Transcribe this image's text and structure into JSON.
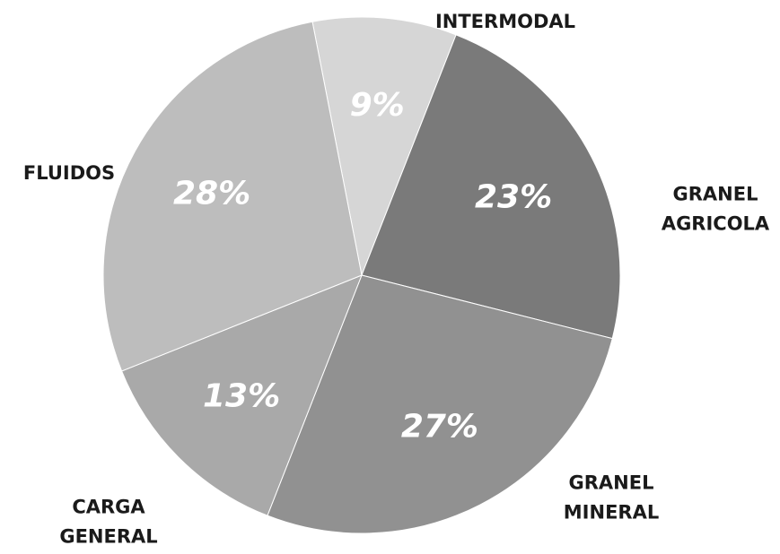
{
  "chart_data": {
    "type": "pie",
    "title": "",
    "slices": [
      {
        "label": [
          "INTERMODAL"
        ],
        "value": 9,
        "value_label": "9%",
        "color": "#d6d6d6"
      },
      {
        "label": [
          "GRANEL",
          "AGRICOLA"
        ],
        "value": 23,
        "value_label": "23%",
        "color": "#7a7a7a"
      },
      {
        "label": [
          "GRANEL",
          "MINERAL"
        ],
        "value": 27,
        "value_label": "27%",
        "color": "#919191"
      },
      {
        "label": [
          "CARGA",
          "GENERAL"
        ],
        "value": 13,
        "value_label": "13%",
        "color": "#a9a9a9"
      },
      {
        "label": [
          "FLUIDOS"
        ],
        "value": 28,
        "value_label": "28%",
        "color": "#bdbdbd"
      }
    ],
    "start_angle_deg": -11,
    "legend": "none"
  }
}
